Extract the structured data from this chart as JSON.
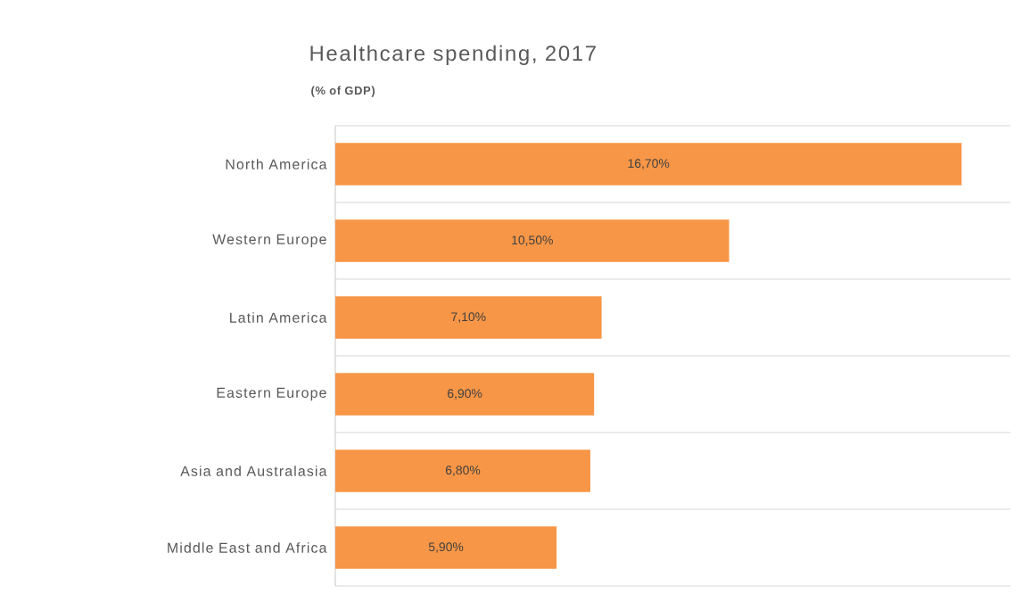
{
  "chart_data": {
    "type": "bar",
    "orientation": "horizontal",
    "title": "Healthcare spending, 2017",
    "subtitle": "(% of GDP)",
    "categories": [
      "North America",
      "Western Europe",
      "Latin America",
      "Eastern Europe",
      "Asia and Australasia",
      "Middle East and Africa"
    ],
    "values": [
      16.7,
      10.5,
      7.1,
      6.9,
      6.8,
      5.9
    ],
    "value_labels": [
      "16,70%",
      "10,50%",
      "7,10%",
      "6,90%",
      "6,80%",
      "5,90%"
    ],
    "color": "#f79646",
    "xlim": [
      0,
      18
    ],
    "grid": "y"
  }
}
